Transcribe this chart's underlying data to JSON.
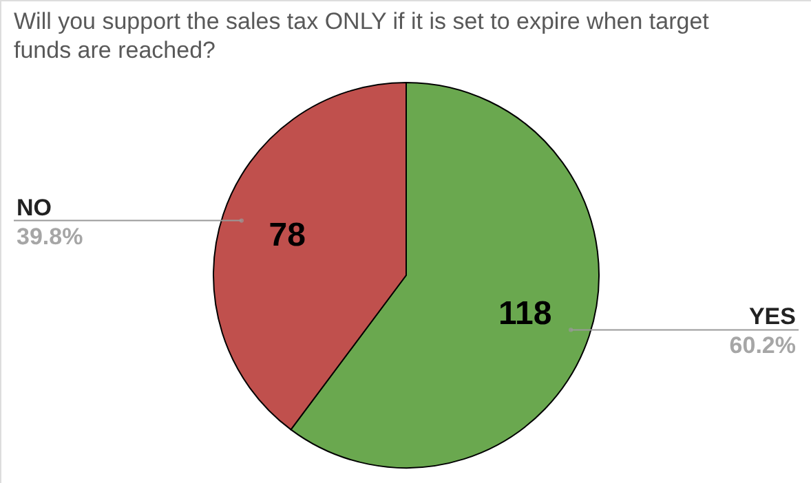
{
  "chart_data": {
    "type": "pie",
    "title": "Will you support the sales tax ONLY if it is set to expire when target funds are reached?",
    "categories": [
      "YES",
      "NO"
    ],
    "values": [
      118,
      78
    ],
    "colors": [
      "#6aa84f",
      "#c0504d"
    ],
    "annotations": [
      "60.2%",
      "39.8%"
    ],
    "data_labels": true
  }
}
